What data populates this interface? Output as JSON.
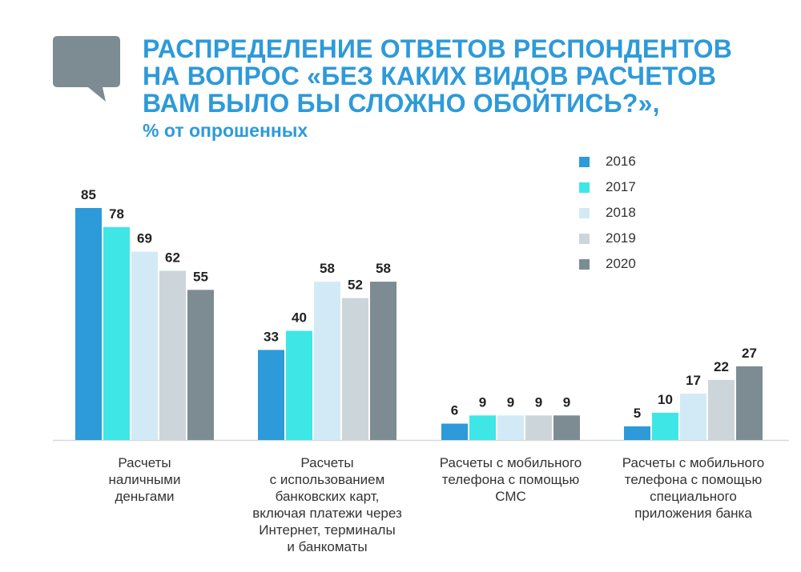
{
  "title_lines": [
    "РАСПРЕДЕЛЕНИЕ ОТВЕТОВ РЕСПОНДЕНТОВ",
    "НА ВОПРОС «БЕЗ КАКИХ ВИДОВ РАСЧЕТОВ",
    "ВАМ БЫЛО БЫ СЛОЖНО ОБОЙТИСЬ?»,"
  ],
  "subtitle": "% от опрошенных",
  "colors": {
    "title": "#2d9ad9",
    "bubble": "#7d8c93",
    "axis": "#d6dadd"
  },
  "chart_data": {
    "type": "bar",
    "categories": [
      "Расчеты наличными деньгами",
      "Расчеты с использованием банковских карт, включая платежи через Интернет, терминалы и банкоматы",
      "Расчеты с мобильного телефона с помощью СМС",
      "Расчеты с мобильного телефона с помощью специального приложения банка"
    ],
    "category_label_lines": [
      [
        "Расчеты",
        "наличными",
        "деньгами"
      ],
      [
        "Расчеты",
        "с использованием",
        "банковских карт,",
        "включая платежи через",
        "Интернет, терминалы",
        "и банкоматы"
      ],
      [
        "Расчеты с мобильного",
        "телефона с помощью",
        "СМС"
      ],
      [
        "Расчеты с мобильного",
        "телефона с помощью",
        "специального",
        "приложения банка"
      ]
    ],
    "series": [
      {
        "name": "2016",
        "color": "#2d9ad9",
        "values": [
          85,
          33,
          6,
          5
        ]
      },
      {
        "name": "2017",
        "color": "#3fe6e6",
        "values": [
          78,
          40,
          9,
          10
        ]
      },
      {
        "name": "2018",
        "color": "#d2eaf6",
        "values": [
          69,
          58,
          9,
          17
        ]
      },
      {
        "name": "2019",
        "color": "#ccd5da",
        "values": [
          62,
          52,
          9,
          22
        ]
      },
      {
        "name": "2020",
        "color": "#7d8c93",
        "values": [
          55,
          58,
          9,
          27
        ]
      }
    ],
    "ylim": [
      0,
      85
    ],
    "grid": false,
    "legend_position": "top-right"
  }
}
